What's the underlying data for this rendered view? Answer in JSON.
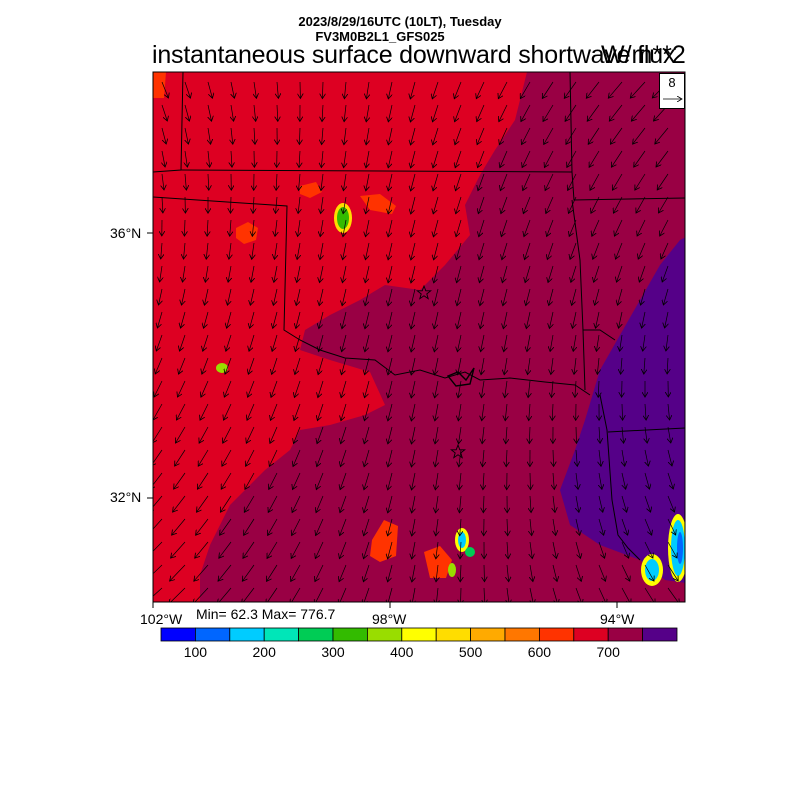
{
  "header": {
    "datetime": "2023/8/29/16UTC (10LT), Tuesday",
    "model": "FV3M0B2L1_GFS025",
    "title": "instantaneous surface downward shortwave flux",
    "units": "W/m**2"
  },
  "stats": {
    "text": "Min= 62.3 Max= 776.7",
    "min": 62.3,
    "max": 776.7
  },
  "axes": {
    "lon_labels": [
      "102°W",
      "98°W",
      "94°W"
    ],
    "lat_labels": [
      "36°N",
      "32°N"
    ]
  },
  "wind_reference": {
    "value": "8"
  },
  "colorbar": {
    "colors": [
      "#0000ff",
      "#0066ff",
      "#00ccff",
      "#00e6b8",
      "#00cc55",
      "#33bb00",
      "#99dd00",
      "#ffff00",
      "#ffdd00",
      "#ffaa00",
      "#ff7700",
      "#ff3300",
      "#dd0022",
      "#990044",
      "#550088"
    ],
    "labels": [
      "100",
      "200",
      "300",
      "400",
      "500",
      "600",
      "700"
    ]
  },
  "map": {
    "colors": {
      "high_600_700": "#dd0022",
      "high_700_750": "#990044",
      "very_high": "#550088",
      "land_outline": "#000000"
    },
    "markers": [
      "star",
      "star"
    ]
  }
}
